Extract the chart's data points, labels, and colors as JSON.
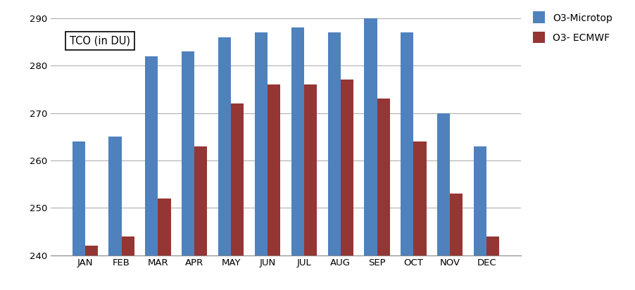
{
  "months": [
    "JAN",
    "FEB",
    "MAR",
    "APR",
    "MAY",
    "JUN",
    "JUL",
    "AUG",
    "SEP",
    "OCT",
    "NOV",
    "DEC"
  ],
  "microtop": [
    264,
    265,
    282,
    283,
    286,
    287,
    288,
    287,
    290,
    287,
    270,
    263
  ],
  "ecmwf": [
    242,
    244,
    252,
    263,
    272,
    276,
    276,
    277,
    273,
    264,
    253,
    244
  ],
  "microtop_color": "#4F81BD",
  "ecmwf_color": "#943634",
  "ylim": [
    240,
    292
  ],
  "yticks": [
    240,
    250,
    260,
    270,
    280,
    290
  ],
  "legend_microtop": "O3-Microtop",
  "legend_ecmwf": "O3- ECMWF",
  "bar_width": 0.35,
  "background_color": "#ffffff",
  "grid_color": "#b0b0b0",
  "annotation_box_text": "TCO (in DU)"
}
